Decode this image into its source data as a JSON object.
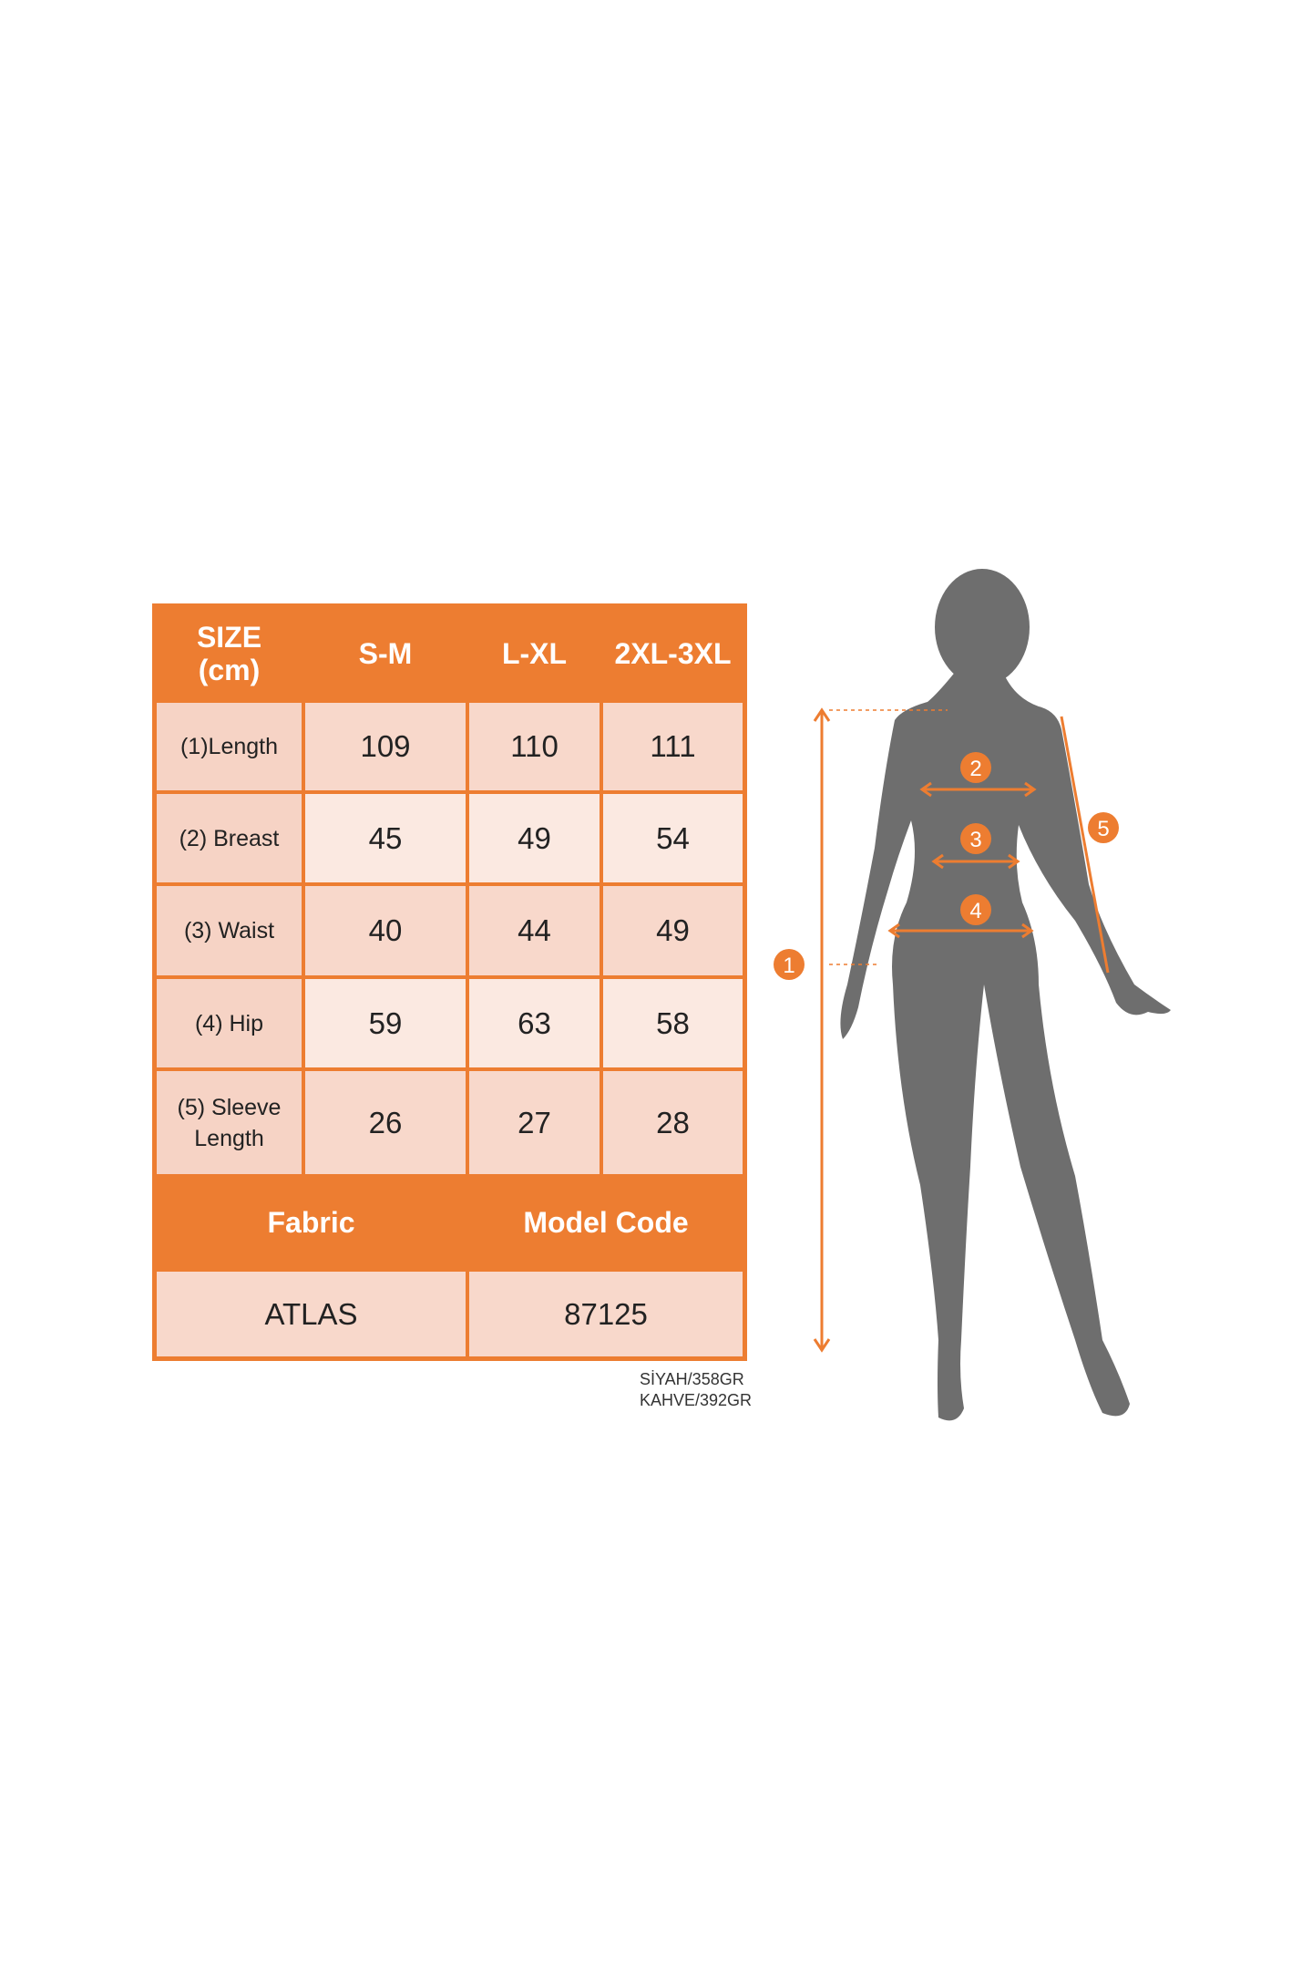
{
  "size_table": {
    "header": [
      "SIZE\n(cm)",
      "S-M",
      "L-XL",
      "2XL-3XL"
    ],
    "header_size_line1": "SIZE",
    "header_size_line2": "(cm)",
    "rows": [
      {
        "label": "(1)Length",
        "values": [
          "109",
          "110",
          "111"
        ]
      },
      {
        "label": "(2) Breast",
        "values": [
          "45",
          "49",
          "54"
        ]
      },
      {
        "label": "(3) Waist",
        "values": [
          "40",
          "44",
          "49"
        ]
      },
      {
        "label": "(4) Hip",
        "values": [
          "59",
          "63",
          "58"
        ]
      },
      {
        "label_line1": "(5) Sleeve",
        "label_line2": "Length",
        "values": [
          "26",
          "27",
          "28"
        ]
      }
    ]
  },
  "info_table": {
    "headers": [
      "Fabric",
      "Model Code"
    ],
    "values": [
      "ATLAS",
      "87125"
    ]
  },
  "weights": [
    "SİYAH/358GR",
    "KAHVE/392GR"
  ],
  "diagram": {
    "markers": [
      "1",
      "2",
      "3",
      "4",
      "5"
    ],
    "accent_color": "#ED7D31",
    "silhouette_color": "#6E6E6E"
  }
}
